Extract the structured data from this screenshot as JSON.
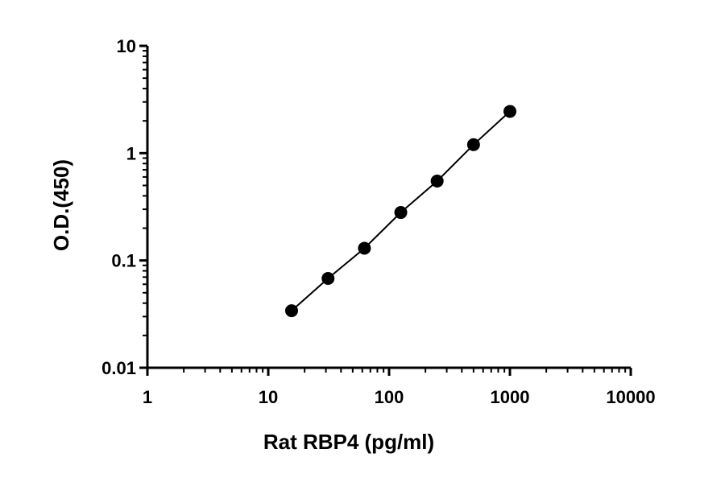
{
  "chart_data": {
    "type": "scatter",
    "x_scale": "log",
    "y_scale": "log",
    "xlabel": "Rat RBP4 (pg/ml)",
    "ylabel": "O.D.(450)",
    "xlim": [
      1,
      10000
    ],
    "ylim": [
      0.01,
      10
    ],
    "x_ticks": [
      "1",
      "10",
      "100",
      "1000",
      "10000"
    ],
    "y_ticks": [
      "0.01",
      "0.1",
      "1",
      "10"
    ],
    "grid": false,
    "fit_line": true,
    "series": [
      {
        "x": [
          15.6,
          31.25,
          62.5,
          125,
          250,
          500,
          1000
        ],
        "y": [
          0.034,
          0.068,
          0.13,
          0.28,
          0.55,
          1.2,
          2.45
        ]
      }
    ]
  }
}
